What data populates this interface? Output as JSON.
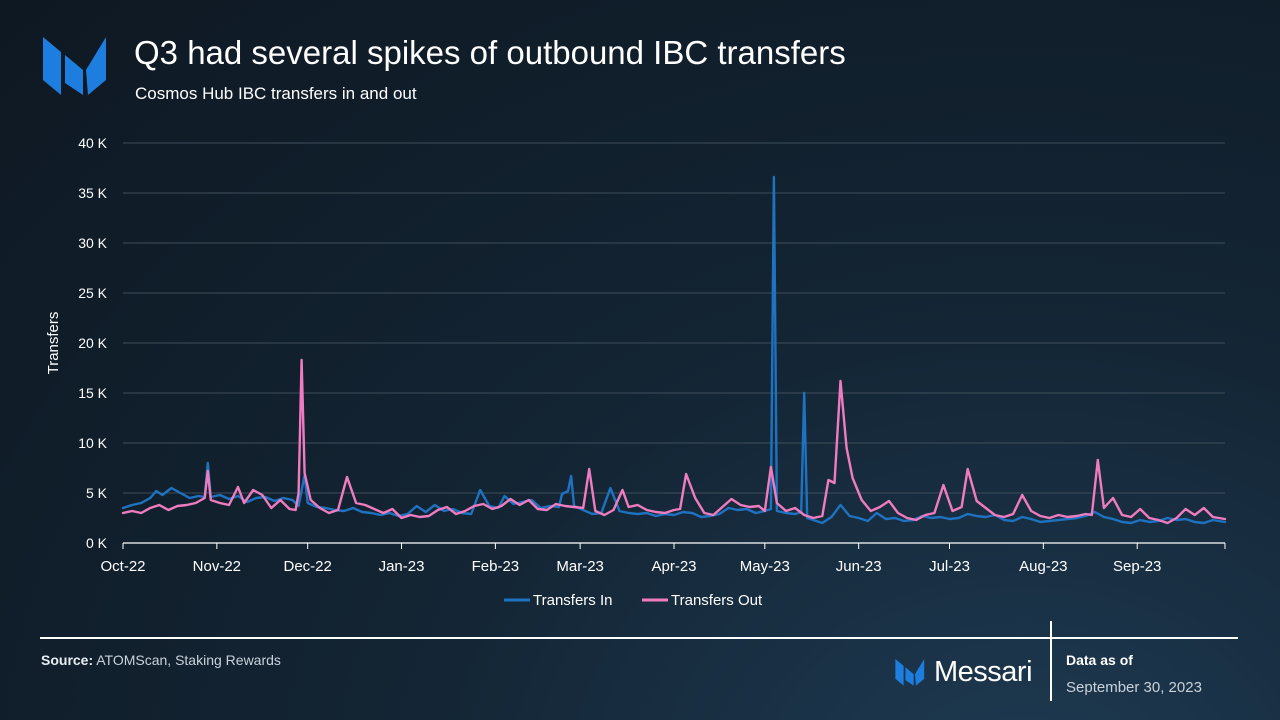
{
  "header": {
    "title": "Q3 had several spikes of outbound IBC transfers",
    "subtitle": "Cosmos Hub IBC transfers in and out"
  },
  "footer": {
    "source_label": "Source:",
    "source_text": " ATOMScan, Staking Rewards",
    "brand_name": "Messari",
    "as_of_label": "Data as of",
    "as_of_date": "September 30, 2023"
  },
  "colors": {
    "transfers_in": "#1f72c0",
    "transfers_out": "#f07cc0",
    "logo": "#1e7ee0",
    "grid": "#3f4d5a",
    "axis": "#ffffff"
  },
  "chart_data": {
    "type": "line",
    "ylabel": "Transfers",
    "xlabel": "",
    "ylim": [
      0,
      40000
    ],
    "yticks": [
      0,
      5000,
      10000,
      15000,
      20000,
      25000,
      30000,
      35000,
      40000
    ],
    "ytick_labels": [
      "0 K",
      "5 K",
      "10 K",
      "15 K",
      "20 K",
      "25 K",
      "30 K",
      "35 K",
      "40 K"
    ],
    "xlim": [
      "2022-10-01",
      "2023-09-30"
    ],
    "xticks": [
      "2022-10-01",
      "2022-11-01",
      "2022-12-01",
      "2023-01-01",
      "2023-02-01",
      "2023-03-01",
      "2023-04-01",
      "2023-05-01",
      "2023-06-01",
      "2023-07-01",
      "2023-08-01",
      "2023-09-01"
    ],
    "xtick_labels": [
      "Oct-22",
      "Nov-22",
      "Dec-22",
      "Jan-23",
      "Feb-23",
      "Mar-23",
      "Apr-23",
      "May-23",
      "Jun-23",
      "Jul-23",
      "Aug-23",
      "Sep-23"
    ],
    "grid": true,
    "legend_position": "bottom",
    "series": [
      {
        "name": "Transfers In",
        "points": [
          [
            "2022-10-01",
            3500
          ],
          [
            "2022-10-04",
            3800
          ],
          [
            "2022-10-07",
            4000
          ],
          [
            "2022-10-10",
            4500
          ],
          [
            "2022-10-12",
            5200
          ],
          [
            "2022-10-14",
            4800
          ],
          [
            "2022-10-17",
            5500
          ],
          [
            "2022-10-20",
            5000
          ],
          [
            "2022-10-23",
            4500
          ],
          [
            "2022-10-26",
            4700
          ],
          [
            "2022-10-28",
            4600
          ],
          [
            "2022-10-29",
            8000
          ],
          [
            "2022-10-30",
            4600
          ],
          [
            "2022-11-02",
            4800
          ],
          [
            "2022-11-05",
            4400
          ],
          [
            "2022-11-08",
            4700
          ],
          [
            "2022-11-11",
            4100
          ],
          [
            "2022-11-14",
            4500
          ],
          [
            "2022-11-17",
            4600
          ],
          [
            "2022-11-20",
            4200
          ],
          [
            "2022-11-23",
            4500
          ],
          [
            "2022-11-26",
            4300
          ],
          [
            "2022-11-28",
            3700
          ],
          [
            "2022-11-30",
            6800
          ],
          [
            "2022-12-01",
            4000
          ],
          [
            "2022-12-04",
            3600
          ],
          [
            "2022-12-07",
            3500
          ],
          [
            "2022-12-10",
            3300
          ],
          [
            "2022-12-13",
            3200
          ],
          [
            "2022-12-16",
            3500
          ],
          [
            "2022-12-19",
            3100
          ],
          [
            "2022-12-22",
            3000
          ],
          [
            "2022-12-25",
            2800
          ],
          [
            "2022-12-28",
            3000
          ],
          [
            "2022-12-31",
            2700
          ],
          [
            "2023-01-03",
            2900
          ],
          [
            "2023-01-06",
            3700
          ],
          [
            "2023-01-09",
            3100
          ],
          [
            "2023-01-12",
            3800
          ],
          [
            "2023-01-15",
            3200
          ],
          [
            "2023-01-18",
            3400
          ],
          [
            "2023-01-21",
            3000
          ],
          [
            "2023-01-24",
            2900
          ],
          [
            "2023-01-27",
            5300
          ],
          [
            "2023-01-30",
            3700
          ],
          [
            "2023-02-02",
            3500
          ],
          [
            "2023-02-04",
            4700
          ],
          [
            "2023-02-07",
            3900
          ],
          [
            "2023-02-10",
            4100
          ],
          [
            "2023-02-13",
            4300
          ],
          [
            "2023-02-16",
            3500
          ],
          [
            "2023-02-19",
            3700
          ],
          [
            "2023-02-22",
            3600
          ],
          [
            "2023-02-23",
            4900
          ],
          [
            "2023-02-25",
            5200
          ],
          [
            "2023-02-26",
            6700
          ],
          [
            "2023-02-27",
            3700
          ],
          [
            "2023-03-02",
            3300
          ],
          [
            "2023-03-05",
            2900
          ],
          [
            "2023-03-08",
            3000
          ],
          [
            "2023-03-11",
            5500
          ],
          [
            "2023-03-14",
            3200
          ],
          [
            "2023-03-17",
            3000
          ],
          [
            "2023-03-20",
            2900
          ],
          [
            "2023-03-23",
            3000
          ],
          [
            "2023-03-26",
            2700
          ],
          [
            "2023-03-29",
            2900
          ],
          [
            "2023-04-01",
            2800
          ],
          [
            "2023-04-04",
            3100
          ],
          [
            "2023-04-07",
            3000
          ],
          [
            "2023-04-10",
            2600
          ],
          [
            "2023-04-13",
            2700
          ],
          [
            "2023-04-16",
            2900
          ],
          [
            "2023-04-19",
            3500
          ],
          [
            "2023-04-22",
            3300
          ],
          [
            "2023-04-25",
            3400
          ],
          [
            "2023-04-28",
            3000
          ],
          [
            "2023-05-01",
            3200
          ],
          [
            "2023-05-03",
            3400
          ],
          [
            "2023-05-04",
            36600
          ],
          [
            "2023-05-05",
            3200
          ],
          [
            "2023-05-08",
            3000
          ],
          [
            "2023-05-11",
            2900
          ],
          [
            "2023-05-13",
            3100
          ],
          [
            "2023-05-14",
            15000
          ],
          [
            "2023-05-15",
            2500
          ],
          [
            "2023-05-18",
            2200
          ],
          [
            "2023-05-20",
            2000
          ],
          [
            "2023-05-23",
            2600
          ],
          [
            "2023-05-26",
            3800
          ],
          [
            "2023-05-29",
            2700
          ],
          [
            "2023-06-01",
            2500
          ],
          [
            "2023-06-04",
            2200
          ],
          [
            "2023-06-07",
            3000
          ],
          [
            "2023-06-10",
            2400
          ],
          [
            "2023-06-13",
            2500
          ],
          [
            "2023-06-16",
            2200
          ],
          [
            "2023-06-19",
            2300
          ],
          [
            "2023-06-22",
            2700
          ],
          [
            "2023-06-25",
            2500
          ],
          [
            "2023-06-28",
            2600
          ],
          [
            "2023-07-01",
            2400
          ],
          [
            "2023-07-04",
            2500
          ],
          [
            "2023-07-07",
            2900
          ],
          [
            "2023-07-10",
            2700
          ],
          [
            "2023-07-13",
            2600
          ],
          [
            "2023-07-16",
            2800
          ],
          [
            "2023-07-19",
            2300
          ],
          [
            "2023-07-22",
            2200
          ],
          [
            "2023-07-25",
            2600
          ],
          [
            "2023-07-28",
            2400
          ],
          [
            "2023-07-31",
            2100
          ],
          [
            "2023-08-03",
            2200
          ],
          [
            "2023-08-06",
            2300
          ],
          [
            "2023-08-09",
            2400
          ],
          [
            "2023-08-12",
            2500
          ],
          [
            "2023-08-15",
            2700
          ],
          [
            "2023-08-18",
            3100
          ],
          [
            "2023-08-21",
            2600
          ],
          [
            "2023-08-24",
            2400
          ],
          [
            "2023-08-27",
            2100
          ],
          [
            "2023-08-30",
            2000
          ],
          [
            "2023-09-02",
            2300
          ],
          [
            "2023-09-05",
            2100
          ],
          [
            "2023-09-08",
            2200
          ],
          [
            "2023-09-11",
            2500
          ],
          [
            "2023-09-14",
            2300
          ],
          [
            "2023-09-17",
            2400
          ],
          [
            "2023-09-20",
            2100
          ],
          [
            "2023-09-23",
            2000
          ],
          [
            "2023-09-26",
            2300
          ],
          [
            "2023-09-30",
            2100
          ]
        ]
      },
      {
        "name": "Transfers Out",
        "points": [
          [
            "2022-10-01",
            3000
          ],
          [
            "2022-10-04",
            3200
          ],
          [
            "2022-10-07",
            3000
          ],
          [
            "2022-10-10",
            3500
          ],
          [
            "2022-10-13",
            3800
          ],
          [
            "2022-10-16",
            3300
          ],
          [
            "2022-10-19",
            3700
          ],
          [
            "2022-10-22",
            3800
          ],
          [
            "2022-10-25",
            4000
          ],
          [
            "2022-10-28",
            4500
          ],
          [
            "2022-10-29",
            7200
          ],
          [
            "2022-10-30",
            4300
          ],
          [
            "2022-11-02",
            4000
          ],
          [
            "2022-11-05",
            3800
          ],
          [
            "2022-11-08",
            5600
          ],
          [
            "2022-11-10",
            4000
          ],
          [
            "2022-11-13",
            5300
          ],
          [
            "2022-11-16",
            4800
          ],
          [
            "2022-11-19",
            3500
          ],
          [
            "2022-11-22",
            4300
          ],
          [
            "2022-11-25",
            3400
          ],
          [
            "2022-11-27",
            3300
          ],
          [
            "2022-11-28",
            5000
          ],
          [
            "2022-11-29",
            18300
          ],
          [
            "2022-11-30",
            7000
          ],
          [
            "2022-12-02",
            4300
          ],
          [
            "2022-12-05",
            3500
          ],
          [
            "2022-12-08",
            3000
          ],
          [
            "2022-12-11",
            3300
          ],
          [
            "2022-12-14",
            6600
          ],
          [
            "2022-12-17",
            4000
          ],
          [
            "2022-12-20",
            3800
          ],
          [
            "2022-12-23",
            3400
          ],
          [
            "2022-12-26",
            3000
          ],
          [
            "2022-12-29",
            3400
          ],
          [
            "2023-01-01",
            2500
          ],
          [
            "2023-01-04",
            2800
          ],
          [
            "2023-01-07",
            2600
          ],
          [
            "2023-01-10",
            2700
          ],
          [
            "2023-01-13",
            3300
          ],
          [
            "2023-01-16",
            3600
          ],
          [
            "2023-01-19",
            2900
          ],
          [
            "2023-01-22",
            3200
          ],
          [
            "2023-01-25",
            3700
          ],
          [
            "2023-01-28",
            3900
          ],
          [
            "2023-01-31",
            3400
          ],
          [
            "2023-02-03",
            3700
          ],
          [
            "2023-02-06",
            4400
          ],
          [
            "2023-02-09",
            3800
          ],
          [
            "2023-02-12",
            4300
          ],
          [
            "2023-02-15",
            3400
          ],
          [
            "2023-02-18",
            3300
          ],
          [
            "2023-02-21",
            3900
          ],
          [
            "2023-02-24",
            3700
          ],
          [
            "2023-02-27",
            3600
          ],
          [
            "2023-03-02",
            3500
          ],
          [
            "2023-03-04",
            7400
          ],
          [
            "2023-03-06",
            3200
          ],
          [
            "2023-03-09",
            2800
          ],
          [
            "2023-03-12",
            3300
          ],
          [
            "2023-03-15",
            5300
          ],
          [
            "2023-03-17",
            3600
          ],
          [
            "2023-03-20",
            3800
          ],
          [
            "2023-03-23",
            3300
          ],
          [
            "2023-03-26",
            3100
          ],
          [
            "2023-03-29",
            3000
          ],
          [
            "2023-04-01",
            3300
          ],
          [
            "2023-04-03",
            3400
          ],
          [
            "2023-04-05",
            6900
          ],
          [
            "2023-04-08",
            4500
          ],
          [
            "2023-04-11",
            3000
          ],
          [
            "2023-04-14",
            2800
          ],
          [
            "2023-04-17",
            3600
          ],
          [
            "2023-04-20",
            4400
          ],
          [
            "2023-04-23",
            3800
          ],
          [
            "2023-04-26",
            3600
          ],
          [
            "2023-04-29",
            3700
          ],
          [
            "2023-05-01",
            3200
          ],
          [
            "2023-05-03",
            7600
          ],
          [
            "2023-05-05",
            4000
          ],
          [
            "2023-05-08",
            3200
          ],
          [
            "2023-05-11",
            3500
          ],
          [
            "2023-05-14",
            2800
          ],
          [
            "2023-05-17",
            2500
          ],
          [
            "2023-05-20",
            2700
          ],
          [
            "2023-05-22",
            6300
          ],
          [
            "2023-05-24",
            6000
          ],
          [
            "2023-05-26",
            16200
          ],
          [
            "2023-05-28",
            9500
          ],
          [
            "2023-05-30",
            6500
          ],
          [
            "2023-06-02",
            4300
          ],
          [
            "2023-06-05",
            3200
          ],
          [
            "2023-06-08",
            3600
          ],
          [
            "2023-06-11",
            4200
          ],
          [
            "2023-06-14",
            3000
          ],
          [
            "2023-06-17",
            2500
          ],
          [
            "2023-06-20",
            2300
          ],
          [
            "2023-06-23",
            2800
          ],
          [
            "2023-06-26",
            3000
          ],
          [
            "2023-06-29",
            5800
          ],
          [
            "2023-07-02",
            3200
          ],
          [
            "2023-07-05",
            3600
          ],
          [
            "2023-07-07",
            7400
          ],
          [
            "2023-07-10",
            4200
          ],
          [
            "2023-07-13",
            3500
          ],
          [
            "2023-07-16",
            2800
          ],
          [
            "2023-07-19",
            2600
          ],
          [
            "2023-07-22",
            2900
          ],
          [
            "2023-07-25",
            4800
          ],
          [
            "2023-07-28",
            3200
          ],
          [
            "2023-07-31",
            2700
          ],
          [
            "2023-08-03",
            2500
          ],
          [
            "2023-08-06",
            2800
          ],
          [
            "2023-08-09",
            2600
          ],
          [
            "2023-08-12",
            2700
          ],
          [
            "2023-08-15",
            2900
          ],
          [
            "2023-08-17",
            2800
          ],
          [
            "2023-08-19",
            8300
          ],
          [
            "2023-08-21",
            3500
          ],
          [
            "2023-08-24",
            4500
          ],
          [
            "2023-08-27",
            2800
          ],
          [
            "2023-08-30",
            2600
          ],
          [
            "2023-09-02",
            3400
          ],
          [
            "2023-09-05",
            2500
          ],
          [
            "2023-09-08",
            2300
          ],
          [
            "2023-09-11",
            2000
          ],
          [
            "2023-09-14",
            2500
          ],
          [
            "2023-09-17",
            3400
          ],
          [
            "2023-09-20",
            2800
          ],
          [
            "2023-09-23",
            3500
          ],
          [
            "2023-09-26",
            2600
          ],
          [
            "2023-09-30",
            2400
          ]
        ]
      }
    ]
  }
}
